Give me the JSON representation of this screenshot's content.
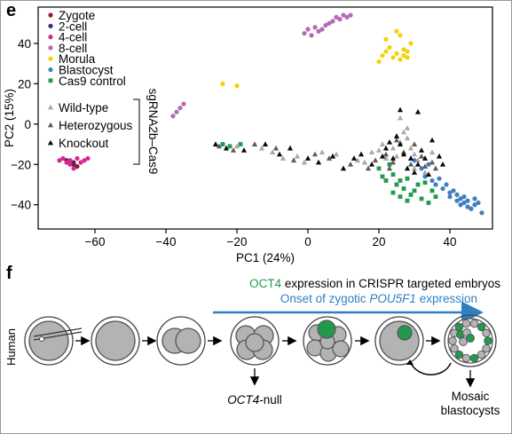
{
  "panel_e": {
    "label": "e",
    "chart_data": {
      "type": "scatter",
      "xlabel": "PC1 (24%)",
      "ylabel": "PC2 (15%)",
      "xlim": [
        -76,
        52
      ],
      "ylim": [
        -52,
        58
      ],
      "xticks": [
        -60,
        -40,
        -20,
        0,
        20,
        40
      ],
      "yticks": [
        -40,
        -20,
        0,
        20,
        40
      ],
      "legend_placement": "top-left",
      "bracket_label": "sgRNA2b–Cas9",
      "series": [
        {
          "name": "Zygote",
          "color": "#8b1a2b",
          "marker": "circle",
          "points": [
            [
              -66,
              -19
            ],
            [
              -65,
              -21
            ]
          ]
        },
        {
          "name": "2-cell",
          "color": "#3a2a6e",
          "marker": "circle",
          "points": [
            [
              -68,
              -18
            ],
            [
              -66,
              -20
            ]
          ]
        },
        {
          "name": "4-cell",
          "color": "#d6288e",
          "marker": "circle",
          "points": [
            [
              -70,
              -18
            ],
            [
              -69,
              -17
            ],
            [
              -68,
              -19
            ],
            [
              -67,
              -20
            ],
            [
              -67,
              -18
            ],
            [
              -66,
              -22
            ],
            [
              -65,
              -17
            ],
            [
              -64,
              -19
            ],
            [
              -63,
              -18
            ],
            [
              -62,
              -17
            ]
          ]
        },
        {
          "name": "8-cell",
          "color": "#b46ab6",
          "marker": "circle",
          "points": [
            [
              -1,
              45
            ],
            [
              0,
              47
            ],
            [
              1,
              44
            ],
            [
              2,
              48
            ],
            [
              3,
              46
            ],
            [
              4,
              47
            ],
            [
              5,
              49
            ],
            [
              6,
              50
            ],
            [
              7,
              51
            ],
            [
              8,
              53
            ],
            [
              9,
              52
            ],
            [
              10,
              54
            ],
            [
              11,
              53
            ],
            [
              12,
              54
            ],
            [
              -38,
              4
            ],
            [
              -37,
              6
            ],
            [
              -36,
              8
            ],
            [
              -35,
              10
            ]
          ]
        },
        {
          "name": "Morula",
          "color": "#f5d10a",
          "marker": "circle",
          "points": [
            [
              20,
              31
            ],
            [
              21,
              34
            ],
            [
              22,
              36
            ],
            [
              22,
              42
            ],
            [
              23,
              38
            ],
            [
              24,
              33
            ],
            [
              25,
              35
            ],
            [
              25,
              46
            ],
            [
              26,
              44
            ],
            [
              26,
              32
            ],
            [
              27,
              37
            ],
            [
              27,
              34
            ],
            [
              28,
              33
            ],
            [
              28,
              36
            ],
            [
              29,
              40
            ],
            [
              -24,
              20
            ],
            [
              -20,
              19
            ]
          ]
        },
        {
          "name": "Blastocyst",
          "color": "#3f7fc0",
          "marker": "circle",
          "points": [
            [
              30,
              -18
            ],
            [
              32,
              -22
            ],
            [
              33,
              -26
            ],
            [
              34,
              -20
            ],
            [
              35,
              -28
            ],
            [
              36,
              -30
            ],
            [
              37,
              -27
            ],
            [
              38,
              -32
            ],
            [
              39,
              -30
            ],
            [
              40,
              -34
            ],
            [
              40,
              -36
            ],
            [
              41,
              -33
            ],
            [
              42,
              -38
            ],
            [
              42,
              -35
            ],
            [
              43,
              -37
            ],
            [
              43,
              -40
            ],
            [
              44,
              -36
            ],
            [
              44,
              -39
            ],
            [
              45,
              -38
            ],
            [
              45,
              -41
            ],
            [
              46,
              -42
            ],
            [
              47,
              -37
            ],
            [
              47,
              -40
            ],
            [
              48,
              -39
            ],
            [
              49,
              -44
            ]
          ]
        },
        {
          "name": "Cas9 control",
          "color": "#219a4c",
          "marker": "square",
          "points": [
            [
              -24,
              -10
            ],
            [
              -22,
              -11
            ],
            [
              -19,
              -10
            ],
            [
              20,
              -22
            ],
            [
              21,
              -26
            ],
            [
              22,
              -28
            ],
            [
              23,
              -20
            ],
            [
              24,
              -25
            ],
            [
              25,
              -30
            ],
            [
              26,
              -28
            ],
            [
              27,
              -32
            ],
            [
              28,
              -27
            ],
            [
              29,
              -35
            ],
            [
              30,
              -33
            ],
            [
              31,
              -30
            ],
            [
              32,
              -37
            ],
            [
              33,
              -29
            ],
            [
              34,
              -39
            ],
            [
              35,
              -33
            ],
            [
              36,
              -36
            ],
            [
              24,
              -34
            ],
            [
              26,
              -36
            ],
            [
              28,
              -38
            ]
          ]
        },
        {
          "name": "Wild-type",
          "color": "#a8a8a8",
          "marker": "triangle",
          "points": [
            [
              -20,
              -11
            ],
            [
              -13,
              -12
            ],
            [
              -10,
              -14
            ],
            [
              -7,
              -17
            ],
            [
              -3,
              -16
            ],
            [
              -1,
              -19
            ],
            [
              4,
              -14
            ],
            [
              8,
              -15
            ],
            [
              14,
              -18
            ],
            [
              16,
              -19
            ],
            [
              18,
              -14
            ],
            [
              20,
              -13
            ],
            [
              21,
              -10
            ],
            [
              22,
              -17
            ],
            [
              24,
              -12
            ],
            [
              25,
              -16
            ],
            [
              26,
              -9
            ],
            [
              27,
              -4
            ],
            [
              28,
              -7
            ],
            [
              29,
              -12
            ],
            [
              30,
              -15
            ],
            [
              31,
              -18
            ],
            [
              26,
              3
            ],
            [
              28,
              -2
            ],
            [
              30,
              -22
            ],
            [
              33,
              -24
            ],
            [
              35,
              -14
            ]
          ]
        },
        {
          "name": "Heterozygous",
          "color": "#5c5c5c",
          "marker": "triangle",
          "points": [
            [
              -25,
              -11
            ],
            [
              -21,
              -13
            ],
            [
              -15,
              -10
            ],
            [
              -9,
              -12
            ],
            [
              -4,
              -18
            ],
            [
              2,
              -15
            ],
            [
              6,
              -17
            ],
            [
              12,
              -20
            ],
            [
              17,
              -22
            ],
            [
              19,
              -18
            ],
            [
              22,
              -15
            ],
            [
              23,
              -22
            ],
            [
              24,
              -19
            ],
            [
              25,
              -8
            ],
            [
              27,
              -14
            ],
            [
              29,
              -20
            ],
            [
              30,
              -10
            ],
            [
              32,
              -16
            ],
            [
              33,
              -21
            ],
            [
              35,
              -19
            ],
            [
              36,
              -22
            ]
          ]
        },
        {
          "name": "Knockout",
          "color": "#0a0a0a",
          "marker": "triangle",
          "points": [
            [
              -26,
              -10
            ],
            [
              -23,
              -12
            ],
            [
              -18,
              -13
            ],
            [
              -12,
              -10
            ],
            [
              -8,
              -15
            ],
            [
              -5,
              -12
            ],
            [
              0,
              -17
            ],
            [
              3,
              -19
            ],
            [
              7,
              -16
            ],
            [
              10,
              -22
            ],
            [
              13,
              -17
            ],
            [
              15,
              -15
            ],
            [
              18,
              -20
            ],
            [
              21,
              -16
            ],
            [
              22,
              -12
            ],
            [
              23,
              -9
            ],
            [
              24,
              -17
            ],
            [
              25,
              -6
            ],
            [
              26,
              -10
            ],
            [
              27,
              -15
            ],
            [
              28,
              -22
            ],
            [
              29,
              -17
            ],
            [
              30,
              -24
            ],
            [
              31,
              -20
            ],
            [
              32,
              -13
            ],
            [
              33,
              -17
            ],
            [
              34,
              -25
            ],
            [
              26,
              7
            ],
            [
              31,
              6
            ],
            [
              35,
              -8
            ],
            [
              37,
              -16
            ],
            [
              38,
              -20
            ]
          ]
        }
      ]
    }
  },
  "panel_f": {
    "label": "f",
    "row_label": "Human",
    "title_colored": "OCT4",
    "title_rest": " expression in CRISPR targeted embryos",
    "onset_prefix": "Onset of zygotic ",
    "onset_gene": "POU5F1",
    "onset_suffix": " expression",
    "null_gene": "OCT4",
    "null_suffix": "-null",
    "mosaic_line1": "Mosaic",
    "mosaic_line2": "blastocysts",
    "colors": {
      "green": "#219a4c",
      "blue": "#2f7fc1",
      "cell_fill": "#b3b3b3",
      "cell_stroke": "#555555",
      "zona": "#444444"
    }
  }
}
